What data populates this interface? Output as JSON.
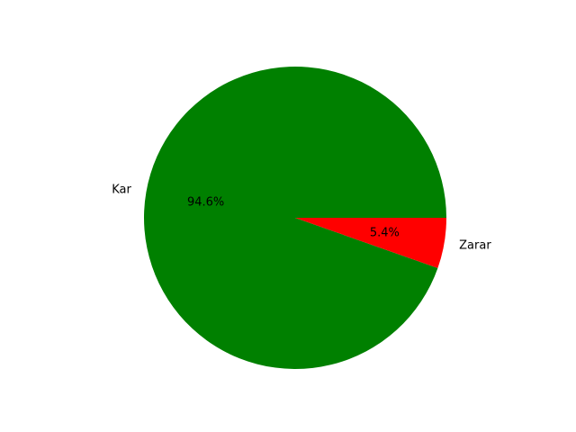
{
  "chart_data": {
    "type": "pie",
    "title": "",
    "slices": [
      {
        "label": "Kar",
        "value": 94.6,
        "pct_label": "94.6%",
        "color": "#008000"
      },
      {
        "label": "Zarar",
        "value": 5.4,
        "pct_label": "5.4%",
        "color": "#ff0000"
      }
    ],
    "start_angle_deg": 0,
    "direction": "counterclockwise",
    "legend": "none"
  }
}
